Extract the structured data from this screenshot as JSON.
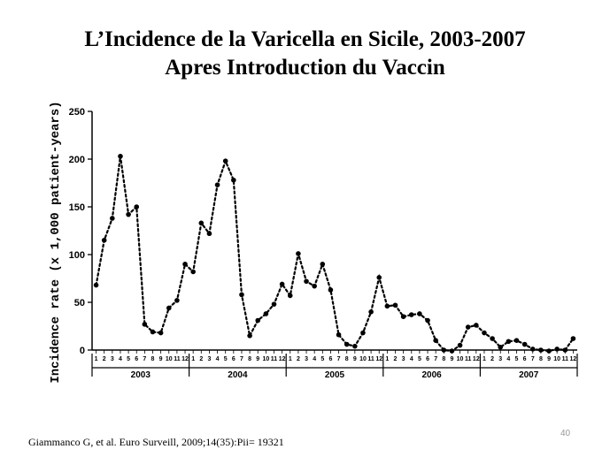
{
  "slide": {
    "title_line1": "L’Incidence de la Varicella en Sicile, 2003-2007",
    "title_line2": "Apres Introduction du Vaccin",
    "citation": "Giammanco G, et al. Euro Surveill, 2009;14(35):Pii= 19321",
    "slide_number": "40"
  },
  "chart_data": {
    "type": "line",
    "ylabel": "Incidence rate (x 1,000 patient-years)",
    "ylim": [
      0,
      250
    ],
    "yticks": [
      "0",
      "50",
      "100",
      "150",
      "200",
      "250"
    ],
    "month_labels": [
      "1",
      "2",
      "3",
      "4",
      "5",
      "6",
      "7",
      "8",
      "9",
      "10",
      "11",
      "12"
    ],
    "years": [
      "2003",
      "2004",
      "2005",
      "2006",
      "2007"
    ],
    "line_style": "dotted",
    "marker": "filled-circle",
    "color": "#000000",
    "values": [
      68,
      115,
      138,
      203,
      142,
      150,
      27,
      19,
      18,
      44,
      52,
      90,
      82,
      133,
      122,
      173,
      198,
      178,
      58,
      15,
      31,
      38,
      48,
      69,
      57,
      101,
      72,
      67,
      90,
      63,
      16,
      6,
      4,
      18,
      40,
      76,
      46,
      47,
      35,
      37,
      38,
      31,
      10,
      0,
      -1,
      5,
      24,
      26,
      18,
      12,
      3,
      9,
      10,
      6,
      1,
      0,
      -1,
      1,
      0,
      12
    ]
  }
}
